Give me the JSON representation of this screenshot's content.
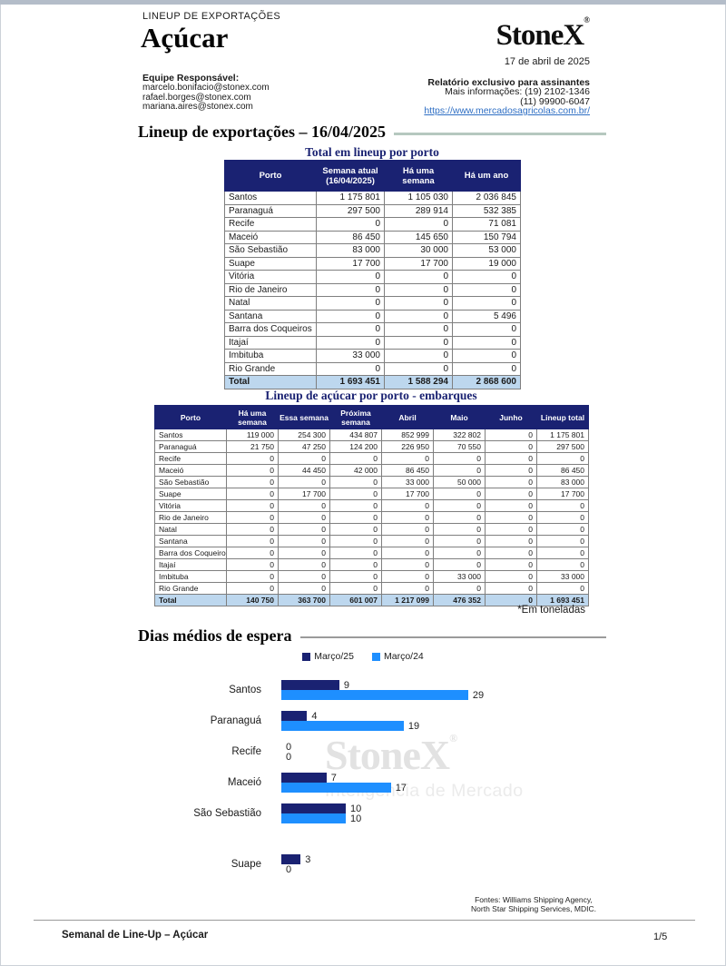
{
  "page": {
    "eyebrow": "LINEUP DE EXPORTAÇÕES",
    "title": "Açúcar",
    "brand": "StoneX",
    "brand_reg": "®",
    "date": "17 de abril de 2025",
    "team_label": "Equipe Responsável:",
    "team_emails": [
      "marcelo.bonifacio@stonex.com",
      "rafael.borges@stonex.com",
      "mariana.aires@stonex.com"
    ],
    "subscriber_note": "Relatório exclusivo para assinantes",
    "contact_line1": "Mais informações: (19) 2102-1346",
    "contact_line2": "(11) 99900-6047",
    "website": "https://www.mercadosagricolas.com.br/"
  },
  "section_title": "Lineup de exportações – 16/04/2025",
  "table1": {
    "title": "Total em lineup por porto",
    "headers": [
      "Porto",
      "Semana atual\n(16/04/2025)",
      "Há uma semana",
      "Há um ano"
    ],
    "rows": [
      [
        "Santos",
        "1 175 801",
        "1 105 030",
        "2 036 845"
      ],
      [
        "Paranaguá",
        "297 500",
        "289 914",
        "532 385"
      ],
      [
        "Recife",
        "0",
        "0",
        "71 081"
      ],
      [
        "Maceió",
        "86 450",
        "145 650",
        "150 794"
      ],
      [
        "São Sebastião",
        "83 000",
        "30 000",
        "53 000"
      ],
      [
        "Suape",
        "17 700",
        "17 700",
        "19 000"
      ],
      [
        "Vitória",
        "0",
        "0",
        "0"
      ],
      [
        "Rio de Janeiro",
        "0",
        "0",
        "0"
      ],
      [
        "Natal",
        "0",
        "0",
        "0"
      ],
      [
        "Santana",
        "0",
        "0",
        "5 496"
      ],
      [
        "Barra dos Coqueiros",
        "0",
        "0",
        "0"
      ],
      [
        "Itajaí",
        "0",
        "0",
        "0"
      ],
      [
        "Imbituba",
        "33 000",
        "0",
        "0"
      ],
      [
        "Rio Grande",
        "0",
        "0",
        "0"
      ]
    ],
    "total": [
      "Total",
      "1 693 451",
      "1 588 294",
      "2 868 600"
    ]
  },
  "table2": {
    "title": "Lineup de açúcar por porto - embarques",
    "headers": [
      "Porto",
      "Há uma semana",
      "Essa semana",
      "Próxima\nsemana",
      "Abril",
      "Maio",
      "Junho",
      "Lineup total"
    ],
    "rows": [
      [
        "Santos",
        "119 000",
        "254 300",
        "434 807",
        "852 999",
        "322 802",
        "0",
        "1 175 801"
      ],
      [
        "Paranaguá",
        "21 750",
        "47 250",
        "124 200",
        "226 950",
        "70 550",
        "0",
        "297 500"
      ],
      [
        "Recife",
        "0",
        "0",
        "0",
        "0",
        "0",
        "0",
        "0"
      ],
      [
        "Maceió",
        "0",
        "44 450",
        "42 000",
        "86 450",
        "0",
        "0",
        "86 450"
      ],
      [
        "São Sebastião",
        "0",
        "0",
        "0",
        "33 000",
        "50 000",
        "0",
        "83 000"
      ],
      [
        "Suape",
        "0",
        "17 700",
        "0",
        "17 700",
        "0",
        "0",
        "17 700"
      ],
      [
        "Vitória",
        "0",
        "0",
        "0",
        "0",
        "0",
        "0",
        "0"
      ],
      [
        "Rio de Janeiro",
        "0",
        "0",
        "0",
        "0",
        "0",
        "0",
        "0"
      ],
      [
        "Natal",
        "0",
        "0",
        "0",
        "0",
        "0",
        "0",
        "0"
      ],
      [
        "Santana",
        "0",
        "0",
        "0",
        "0",
        "0",
        "0",
        "0"
      ],
      [
        "Barra dos Coqueiros",
        "0",
        "0",
        "0",
        "0",
        "0",
        "0",
        "0"
      ],
      [
        "Itajaí",
        "0",
        "0",
        "0",
        "0",
        "0",
        "0",
        "0"
      ],
      [
        "Imbituba",
        "0",
        "0",
        "0",
        "0",
        "33 000",
        "0",
        "33 000"
      ],
      [
        "Rio Grande",
        "0",
        "0",
        "0",
        "0",
        "0",
        "0",
        "0"
      ]
    ],
    "total": [
      "Total",
      "140 750",
      "363 700",
      "601 007",
      "1 217 099",
      "476 352",
      "0",
      "1 693 451"
    ]
  },
  "unit_note": "*Em toneladas",
  "chart_section_title": "Dias médios de espera",
  "chart_data": {
    "type": "bar",
    "orientation": "horizontal",
    "title": "Dias médios de espera",
    "categories": [
      "Santos",
      "Paranaguá",
      "Recife",
      "Maceió",
      "São Sebastião",
      "Suape"
    ],
    "series": [
      {
        "name": "Março/25",
        "color": "#1a2272",
        "values": [
          9,
          4,
          0,
          7,
          10,
          3
        ]
      },
      {
        "name": "Março/24",
        "color": "#1e8fff",
        "values": [
          29,
          19,
          0,
          17,
          10,
          0
        ]
      }
    ],
    "xlim": [
      0,
      32
    ],
    "grid": false,
    "legend_position": "top-center",
    "data_labels": true,
    "extra_gap_before_index": 5
  },
  "watermark": {
    "line1": "StoneX",
    "reg": "®",
    "line2": "Inteligência de Mercado"
  },
  "footer": {
    "sources_line1": "Fontes: Williams Shipping Agency,",
    "sources_line2": "North Star Shipping Services, MDIC.",
    "doc_title": "Semanal de Line-Up – Açúcar",
    "page_number": "1/5"
  },
  "colors": {
    "navy": "#1a2272",
    "blue": "#1e8fff",
    "total_row": "#bdd7ee",
    "sage_rule": "#b6c8bf",
    "gray_rule": "#9a9a9a",
    "link": "#2f6fc4"
  }
}
